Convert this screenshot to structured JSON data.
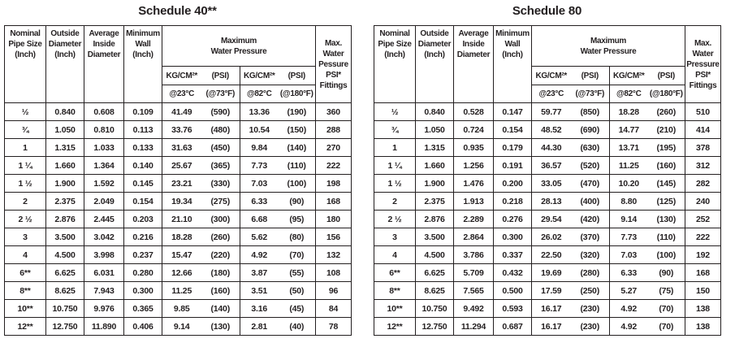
{
  "page": {
    "background": "#ffffff",
    "text_color": "#231f20",
    "border_color": "#231f20"
  },
  "tables": [
    {
      "title": "Schedule 40**",
      "headers": {
        "size": "Nominal\nPipe Size\n(Inch)",
        "outside_diameter": "Outside\nDiameter\n(Inch)",
        "inside_diameter": "Average\nInside\nDiameter",
        "min_wall": "Minimum\nWall\n(Inch)",
        "max_water_pressure": "Maximum\nWater Pressure",
        "kg_23": "KG/CM²*",
        "psi_23": "(PSI)",
        "kg_82": "KG/CM²*",
        "psi_82": "(PSI)",
        "temp_c_23": "@23°C",
        "temp_f_73": "(@73°F)",
        "temp_c_82": "@82°C",
        "temp_f_180": "(@180°F)",
        "fittings": "Max.\nWater\nPessure\nPSI*\nFittings"
      },
      "rows": [
        [
          "½",
          "0.840",
          "0.608",
          "0.109",
          "41.49",
          "(590)",
          "13.36",
          "(190)",
          "360"
        ],
        [
          "¾",
          "1.050",
          "0.810",
          "0.113",
          "33.76",
          "(480)",
          "10.54",
          "(150)",
          "288"
        ],
        [
          "1",
          "1.315",
          "1.033",
          "0.133",
          "31.63",
          "(450)",
          "9.84",
          "(140)",
          "270"
        ],
        [
          "1 ¼",
          "1.660",
          "1.364",
          "0.140",
          "25.67",
          "(365)",
          "7.73",
          "(110)",
          "222"
        ],
        [
          "1 ½",
          "1.900",
          "1.592",
          "0.145",
          "23.21",
          "(330)",
          "7.03",
          "(100)",
          "198"
        ],
        [
          "2",
          "2.375",
          "2.049",
          "0.154",
          "19.34",
          "(275)",
          "6.33",
          "(90)",
          "168"
        ],
        [
          "2 ½",
          "2.876",
          "2.445",
          "0.203",
          "21.10",
          "(300)",
          "6.68",
          "(95)",
          "180"
        ],
        [
          "3",
          "3.500",
          "3.042",
          "0.216",
          "18.28",
          "(260)",
          "5.62",
          "(80)",
          "156"
        ],
        [
          "4",
          "4.500",
          "3.998",
          "0.237",
          "15.47",
          "(220)",
          "4.92",
          "(70)",
          "132"
        ],
        [
          "6**",
          "6.625",
          "6.031",
          "0.280",
          "12.66",
          "(180)",
          "3.87",
          "(55)",
          "108"
        ],
        [
          "8**",
          "8.625",
          "7.943",
          "0.300",
          "11.25",
          "(160)",
          "3.51",
          "(50)",
          "96"
        ],
        [
          "10**",
          "10.750",
          "9.976",
          "0.365",
          "9.85",
          "(140)",
          "3.16",
          "(45)",
          "84"
        ],
        [
          "12**",
          "12.750",
          "11.890",
          "0.406",
          "9.14",
          "(130)",
          "2.81",
          "(40)",
          "78"
        ]
      ]
    },
    {
      "title": "Schedule 80",
      "headers": {
        "size": "Nominal\nPipe Size\n(Inch)",
        "outside_diameter": "Outside\nDiameter\n(Inch)",
        "inside_diameter": "Average\nInside\nDiameter",
        "min_wall": "Minimum\nWall\n(Inch)",
        "max_water_pressure": "Maximum\nWater Pressure",
        "kg_23": "KG/CM²*",
        "psi_23": "(PSI)",
        "kg_82": "KG/CM²*",
        "psi_82": "(PSI)",
        "temp_c_23": "@23°C",
        "temp_f_73": "(@73°F)",
        "temp_c_82": "@82°C",
        "temp_f_180": "(@180°F)",
        "fittings": "Max.\nWater\nPressure\nPSI*\nFittings"
      },
      "rows": [
        [
          "½",
          "0.840",
          "0.528",
          "0.147",
          "59.77",
          "(850)",
          "18.28",
          "(260)",
          "510"
        ],
        [
          "¾",
          "1.050",
          "0.724",
          "0.154",
          "48.52",
          "(690)",
          "14.77",
          "(210)",
          "414"
        ],
        [
          "1",
          "1.315",
          "0.935",
          "0.179",
          "44.30",
          "(630)",
          "13.71",
          "(195)",
          "378"
        ],
        [
          "1 ¼",
          "1.660",
          "1.256",
          "0.191",
          "36.57",
          "(520)",
          "11.25",
          "(160)",
          "312"
        ],
        [
          "1 ½",
          "1.900",
          "1.476",
          "0.200",
          "33.05",
          "(470)",
          "10.20",
          "(145)",
          "282"
        ],
        [
          "2",
          "2.375",
          "1.913",
          "0.218",
          "28.13",
          "(400)",
          "8.80",
          "(125)",
          "240"
        ],
        [
          "2 ½",
          "2.876",
          "2.289",
          "0.276",
          "29.54",
          "(420)",
          "9.14",
          "(130)",
          "252"
        ],
        [
          "3",
          "3.500",
          "2.864",
          "0.300",
          "26.02",
          "(370)",
          "7.73",
          "(110)",
          "222"
        ],
        [
          "4",
          "4.500",
          "3.786",
          "0.337",
          "22.50",
          "(320)",
          "7.03",
          "(100)",
          "192"
        ],
        [
          "6**",
          "6.625",
          "5.709",
          "0.432",
          "19.69",
          "(280)",
          "6.33",
          "(90)",
          "168"
        ],
        [
          "8**",
          "8.625",
          "7.565",
          "0.500",
          "17.59",
          "(250)",
          "5.27",
          "(75)",
          "150"
        ],
        [
          "10**",
          "10.750",
          "9.492",
          "0.593",
          "16.17",
          "(230)",
          "4.92",
          "(70)",
          "138"
        ],
        [
          "12**",
          "12.750",
          "11.294",
          "0.687",
          "16.17",
          "(230)",
          "4.92",
          "(70)",
          "138"
        ]
      ]
    }
  ]
}
